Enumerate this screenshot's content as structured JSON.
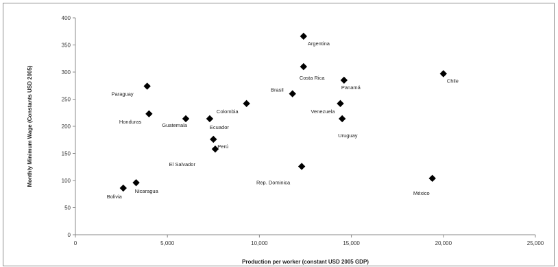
{
  "chart_data": {
    "type": "scatter",
    "xlabel": "Production per worker (constant USD 2005 GDP)",
    "ylabel": "Monthly Minimum Wage (Constants USD 2005)",
    "xlim": [
      0,
      25000
    ],
    "ylim": [
      0,
      400
    ],
    "x_ticks": [
      0,
      5000,
      10000,
      15000,
      20000,
      25000
    ],
    "x_tick_labels": [
      "0",
      "5,000",
      "10,000",
      "15,000",
      "20,000",
      "25,000"
    ],
    "y_ticks": [
      0,
      50,
      100,
      150,
      200,
      250,
      300,
      350,
      400
    ],
    "y_tick_labels": [
      "0",
      "50",
      "100",
      "150",
      "200",
      "250",
      "300",
      "350",
      "400"
    ],
    "grid": false,
    "marker": "diamond",
    "marker_color": "#000000",
    "points": [
      {
        "label": "Argentina",
        "x": 12400,
        "y": 366
      },
      {
        "label": "Costa Rica",
        "x": 12400,
        "y": 310
      },
      {
        "label": "Chile",
        "x": 20000,
        "y": 297
      },
      {
        "label": "Panamá",
        "x": 14600,
        "y": 285
      },
      {
        "label": "Paraguay",
        "x": 3900,
        "y": 274
      },
      {
        "label": "Brasil",
        "x": 11800,
        "y": 260
      },
      {
        "label": "Colombia",
        "x": 9300,
        "y": 242
      },
      {
        "label": "Venezuela",
        "x": 14400,
        "y": 242
      },
      {
        "label": "Honduras",
        "x": 4000,
        "y": 223
      },
      {
        "label": "Guatemala",
        "x": 6000,
        "y": 214
      },
      {
        "label": "Ecuador",
        "x": 7300,
        "y": 214
      },
      {
        "label": "Uruguay",
        "x": 14500,
        "y": 214
      },
      {
        "label": "Perú",
        "x": 7500,
        "y": 176
      },
      {
        "label": "El Salvador",
        "x": 7600,
        "y": 158
      },
      {
        "label": "Rep. Dominica",
        "x": 12300,
        "y": 126
      },
      {
        "label": "México",
        "x": 19400,
        "y": 104
      },
      {
        "label": "Nicaragua",
        "x": 3300,
        "y": 96
      },
      {
        "label": "Bolivia",
        "x": 2600,
        "y": 86
      }
    ]
  }
}
